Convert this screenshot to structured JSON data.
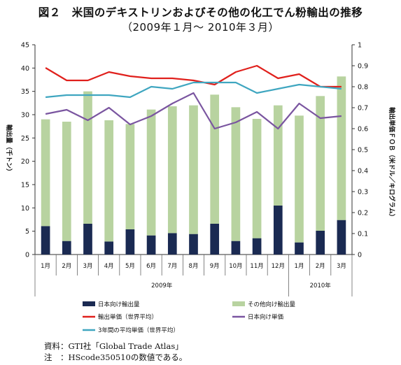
{
  "title_line1": "図２　米国のデキストリンおよびその他の化工でん粉輸出の推移",
  "title_line2": "（2009年１月～ 2010年３月）",
  "source_note": "資料：GTI社「Global Trade Atlas」",
  "footnote": "注　：HScode350510の数値である。",
  "colors": {
    "japan_bar": "#1a2a52",
    "other_bar": "#b8d3a0",
    "world_price": "#e0201c",
    "japan_price": "#7a55a0",
    "avg_price": "#3fa6c0"
  },
  "chart_data": {
    "type": "bar",
    "categories": [
      "1月",
      "2月",
      "3月",
      "4月",
      "5月",
      "6月",
      "7月",
      "8月",
      "9月",
      "10月",
      "11月",
      "12月",
      "1月",
      "2月",
      "3月"
    ],
    "year_groups": [
      {
        "label": "2009年",
        "count": 12
      },
      {
        "label": "2010年",
        "count": 3
      }
    ],
    "ylabel": "輸出量（千トン）",
    "y2label": "輸出単価ＦＯＢ（米ドル／キログラム）",
    "ylim": [
      0,
      45
    ],
    "yticks": [
      "0",
      "5",
      "10",
      "15",
      "20",
      "25",
      "30",
      "35",
      "40",
      "45"
    ],
    "y2lim": [
      0,
      1
    ],
    "y2ticks": [
      "0",
      "0.1",
      "0.2",
      "0.3",
      "0.4",
      "0.5",
      "0.6",
      "0.7",
      "0.8",
      "0.9",
      "1"
    ],
    "stacked": true,
    "grid": false,
    "legend_position": "bottom",
    "series": [
      {
        "name": "日本向け輸出量",
        "kind": "bar",
        "axis": "left",
        "values": [
          6.1,
          2.9,
          6.6,
          2.8,
          5.4,
          4.1,
          4.6,
          4.4,
          6.6,
          2.9,
          3.5,
          10.5,
          2.6,
          5.1,
          7.4
        ]
      },
      {
        "name": "その他向け輸出量",
        "kind": "bar",
        "axis": "left",
        "values": [
          22.9,
          25.6,
          28.4,
          26.0,
          22.6,
          27.0,
          27.2,
          27.6,
          27.7,
          28.7,
          25.6,
          21.5,
          27.2,
          28.9,
          30.8
        ]
      },
      {
        "name": "輸出単価（世界平均）",
        "kind": "line",
        "axis": "right",
        "values": [
          0.89,
          0.83,
          0.83,
          0.87,
          0.85,
          0.84,
          0.84,
          0.83,
          0.81,
          0.87,
          0.9,
          0.84,
          0.86,
          0.8,
          0.8
        ]
      },
      {
        "name": "日本向け単価",
        "kind": "line",
        "axis": "right",
        "values": [
          0.67,
          0.69,
          0.64,
          0.7,
          0.62,
          0.66,
          0.72,
          0.77,
          0.6,
          0.63,
          0.68,
          0.6,
          0.72,
          0.65,
          0.66
        ]
      },
      {
        "name": "3年間の平均単価（世界平均）",
        "kind": "line",
        "axis": "right",
        "values": [
          0.75,
          0.76,
          0.76,
          0.76,
          0.75,
          0.8,
          0.79,
          0.82,
          0.82,
          0.82,
          0.77,
          0.79,
          0.81,
          0.8,
          0.79
        ]
      }
    ]
  }
}
